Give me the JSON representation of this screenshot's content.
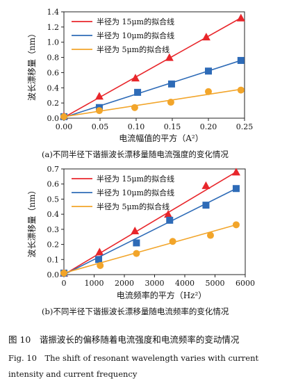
{
  "chart_data": [
    {
      "type": "scatter",
      "caption": "(a)不同半径下谐振波长漂移量随电流强度的变化情况",
      "xlabel": "电流幅值的平方（A²）",
      "ylabel": "波长漂移量（nm）",
      "xlim": [
        0,
        0.25
      ],
      "ylim": [
        0,
        1.4
      ],
      "x_ticks": [
        "0.00",
        "0.05",
        "0.10",
        "0.15",
        "0.20",
        "0.25"
      ],
      "y_ticks": [
        "0.0",
        "0.2",
        "0.4",
        "0.6",
        "0.8",
        "1.0",
        "1.2",
        "1.4"
      ],
      "legend_position": "top-left",
      "grid": false,
      "series": [
        {
          "name": "半径为 15μm的拟合线",
          "color": "#e8262b",
          "marker": "triangle",
          "points": [
            [
              0,
              0.03
            ],
            [
              0.049,
              0.29
            ],
            [
              0.099,
              0.53
            ],
            [
              0.146,
              0.8
            ],
            [
              0.197,
              1.07
            ],
            [
              0.245,
              1.32
            ]
          ],
          "fit": [
            [
              0,
              0.01
            ],
            [
              0.245,
              1.32
            ]
          ]
        },
        {
          "name": "半径为 10μm的拟合线",
          "color": "#2e6bb7",
          "marker": "square",
          "points": [
            [
              0,
              0.02
            ],
            [
              0.049,
              0.14
            ],
            [
              0.102,
              0.34
            ],
            [
              0.149,
              0.45
            ],
            [
              0.2,
              0.62
            ],
            [
              0.245,
              0.76
            ]
          ],
          "fit": [
            [
              0,
              0.01
            ],
            [
              0.245,
              0.76
            ]
          ]
        },
        {
          "name": "半径为 5μm的拟合线",
          "color": "#f2a52a",
          "marker": "circle",
          "points": [
            [
              0,
              0.02
            ],
            [
              0.049,
              0.1
            ],
            [
              0.098,
              0.14
            ],
            [
              0.148,
              0.21
            ],
            [
              0.2,
              0.35
            ],
            [
              0.245,
              0.37
            ]
          ],
          "fit": [
            [
              0,
              0.02
            ],
            [
              0.245,
              0.38
            ]
          ]
        }
      ]
    },
    {
      "type": "scatter",
      "caption": "(b)不同半径下谐振波长漂移量随电流频率的变化情况",
      "xlabel": "电流频率的平方（Hz²）",
      "ylabel": "波长漂移量（nm）",
      "xlim": [
        0,
        6000
      ],
      "ylim": [
        0,
        0.7
      ],
      "x_ticks": [
        "0",
        "1000",
        "2000",
        "3000",
        "4000",
        "5000",
        "6000"
      ],
      "y_ticks": [
        "0.0",
        "0.1",
        "0.2",
        "0.3",
        "0.4",
        "0.5",
        "0.6",
        "0.7"
      ],
      "legend_position": "top-left",
      "grid": false,
      "series": [
        {
          "name": "半径为 15μm的拟合线",
          "color": "#e8262b",
          "marker": "triangle",
          "points": [
            [
              0,
              0.01
            ],
            [
              1180,
              0.15
            ],
            [
              2350,
              0.29
            ],
            [
              3450,
              0.4
            ],
            [
              4700,
              0.59
            ],
            [
              5700,
              0.68
            ]
          ],
          "fit": [
            [
              0,
              0.0
            ],
            [
              5700,
              0.68
            ]
          ]
        },
        {
          "name": "半径为 10μm的拟合线",
          "color": "#2e6bb7",
          "marker": "square",
          "points": [
            [
              0,
              0.01
            ],
            [
              1150,
              0.1
            ],
            [
              2400,
              0.21
            ],
            [
              3500,
              0.36
            ],
            [
              4700,
              0.46
            ],
            [
              5700,
              0.57
            ]
          ],
          "fit": [
            [
              0,
              0.0
            ],
            [
              5700,
              0.57
            ]
          ]
        },
        {
          "name": "半径为 5μm的拟合线",
          "color": "#f2a52a",
          "marker": "circle",
          "points": [
            [
              0,
              0.01
            ],
            [
              1200,
              0.06
            ],
            [
              2400,
              0.14
            ],
            [
              3600,
              0.22
            ],
            [
              4850,
              0.26
            ],
            [
              5700,
              0.33
            ]
          ],
          "fit": [
            [
              0,
              0.01
            ],
            [
              5700,
              0.33
            ]
          ]
        }
      ]
    }
  ],
  "figure": {
    "caption_cn": "图 10　谐振波长的偏移随着电流强度和电流频率的变动情况",
    "caption_en_line1": "Fig. 10　The shift of resonant wavelength varies with current",
    "caption_en_line2": "intensity and current frequency"
  }
}
